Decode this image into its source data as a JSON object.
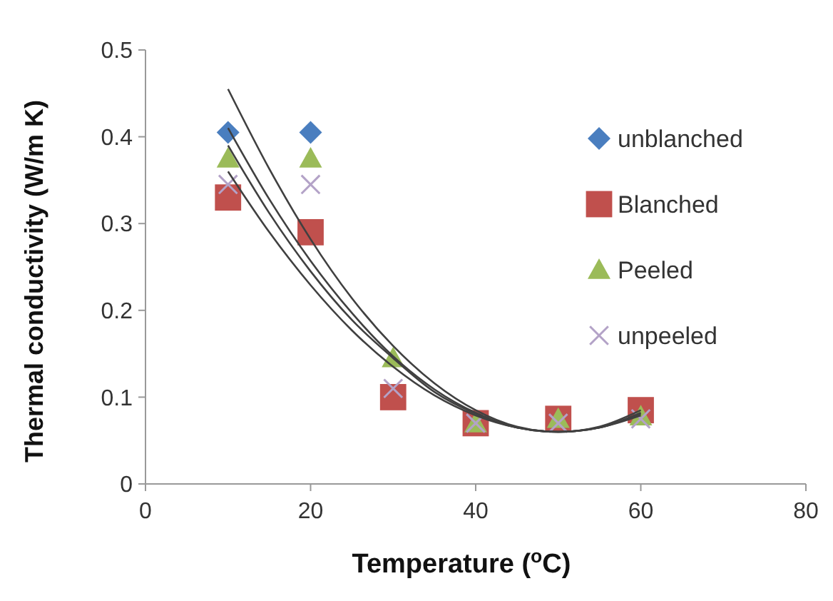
{
  "chart_data": {
    "type": "scatter",
    "xlabel": "Temperature ($^{o}$C)",
    "ylabel": "Thermal conductivity (W/m K)",
    "x": [
      10,
      20,
      30,
      40,
      50,
      60
    ],
    "xlim": [
      0,
      80
    ],
    "xticks": [
      0,
      20,
      40,
      60,
      80
    ],
    "ylim": [
      0,
      0.5
    ],
    "yticks": [
      0,
      0.1,
      0.2,
      0.3,
      0.4,
      0.5
    ],
    "grid": false,
    "legend": "right",
    "series": [
      {
        "name": "unblanched",
        "color": "#4a7ebf",
        "marker": "diamond",
        "values": [
          0.405,
          0.405,
          null,
          null,
          null,
          null
        ]
      },
      {
        "name": "Blanched",
        "color": "#c0504d",
        "marker": "square",
        "values": [
          0.33,
          0.29,
          0.1,
          0.07,
          0.075,
          0.085
        ]
      },
      {
        "name": "Peeled",
        "color": "#9bbb59",
        "marker": "triangle",
        "values": [
          0.375,
          0.375,
          0.145,
          0.07,
          0.075,
          0.078
        ]
      },
      {
        "name": "unpeeled",
        "color": "#b3a2c7",
        "marker": "cross",
        "values": [
          0.345,
          0.345,
          0.11,
          0.07,
          0.07,
          0.075
        ]
      },
      {
        "type": "line",
        "color": "#404040",
        "marker": "none",
        "x": [
          10,
          15,
          20,
          25,
          30,
          35,
          40,
          45,
          50,
          55,
          60
        ],
        "values": [
          0.455,
          0.363,
          0.282,
          0.214,
          0.159,
          0.116,
          0.085,
          0.066,
          0.06,
          0.066,
          0.085
        ]
      },
      {
        "type": "line",
        "color": "#404040",
        "marker": "none",
        "x": [
          10,
          15,
          20,
          25,
          30,
          35,
          40,
          45,
          50,
          55,
          60
        ],
        "values": [
          0.41,
          0.328,
          0.257,
          0.197,
          0.147,
          0.109,
          0.082,
          0.065,
          0.06,
          0.065,
          0.082
        ]
      },
      {
        "type": "line",
        "color": "#404040",
        "marker": "none",
        "x": [
          10,
          15,
          20,
          25,
          30,
          35,
          40,
          45,
          50,
          55,
          60
        ],
        "values": [
          0.39,
          0.312,
          0.245,
          0.189,
          0.145,
          0.106,
          0.081,
          0.065,
          0.06,
          0.065,
          0.081
        ]
      },
      {
        "type": "line",
        "color": "#404040",
        "marker": "none",
        "x": [
          10,
          15,
          20,
          25,
          30,
          35,
          40,
          45,
          50,
          55,
          60
        ],
        "values": [
          0.36,
          0.29,
          0.229,
          0.177,
          0.135,
          0.102,
          0.079,
          0.065,
          0.06,
          0.065,
          0.079
        ]
      }
    ]
  }
}
